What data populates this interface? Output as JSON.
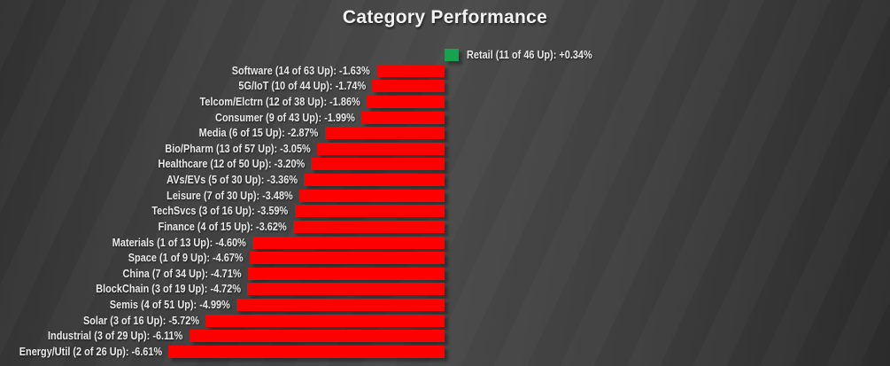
{
  "chart_data": {
    "type": "bar",
    "orientation": "horizontal",
    "title": "Category Performance",
    "categories": [
      "Retail",
      "Software",
      "5G/IoT",
      "Telcom/Elctrn",
      "Consumer",
      "Media",
      "Bio/Pharm",
      "Healthcare",
      "AVs/EVs",
      "Leisure",
      "TechSvcs",
      "Finance",
      "Materials",
      "Space",
      "China",
      "BlockChain",
      "Semis",
      "Solar",
      "Industrial",
      "Energy/Util"
    ],
    "labels": [
      "Retail (11 of 46 Up): +0.34%",
      "Software (14 of 63 Up): -1.63%",
      "5G/IoT (10 of 44 Up): -1.74%",
      "Telcom/Elctrn (12 of 38 Up): -1.86%",
      "Consumer (9 of 43 Up): -1.99%",
      "Media (6 of 15 Up): -2.87%",
      "Bio/Pharm (13 of 57 Up): -3.05%",
      "Healthcare (12 of 50 Up): -3.20%",
      "AVs/EVs (5 of 30 Up): -3.36%",
      "Leisure (7 of 30 Up): -3.48%",
      "TechSvcs (3 of 16 Up): -3.59%",
      "Finance (4 of 15 Up): -3.62%",
      "Materials (1 of 13 Up): -4.60%",
      "Space (1 of 9 Up): -4.67%",
      "China (7 of 34 Up): -4.71%",
      "BlockChain (3 of 19 Up): -4.72%",
      "Semis (4 of 51 Up): -4.99%",
      "Solar (3 of 16 Up): -5.72%",
      "Industrial (3 of 29 Up): -6.11%",
      "Energy/Util (2 of 26 Up): -6.61%"
    ],
    "values": [
      0.34,
      -1.63,
      -1.74,
      -1.86,
      -1.99,
      -2.87,
      -3.05,
      -3.2,
      -3.36,
      -3.48,
      -3.59,
      -3.62,
      -4.6,
      -4.67,
      -4.71,
      -4.72,
      -4.99,
      -5.72,
      -6.11,
      -6.61
    ],
    "up_of": [
      [
        11,
        46
      ],
      [
        14,
        63
      ],
      [
        10,
        44
      ],
      [
        12,
        38
      ],
      [
        9,
        43
      ],
      [
        6,
        15
      ],
      [
        13,
        57
      ],
      [
        12,
        50
      ],
      [
        5,
        30
      ],
      [
        7,
        30
      ],
      [
        3,
        16
      ],
      [
        4,
        15
      ],
      [
        1,
        13
      ],
      [
        1,
        9
      ],
      [
        7,
        34
      ],
      [
        3,
        19
      ],
      [
        4,
        51
      ],
      [
        3,
        16
      ],
      [
        3,
        29
      ],
      [
        2,
        26
      ]
    ],
    "grid": false,
    "legend": "none",
    "axis_labels_visible": false
  },
  "colors": {
    "positive_bar": "#16a24f",
    "negative_bar": "#ff0000",
    "label_text": "#e9e9e9",
    "title_text": "#f2f2f2",
    "background_light": "#4a4a4a",
    "background_dark": "#2b2b2b"
  }
}
